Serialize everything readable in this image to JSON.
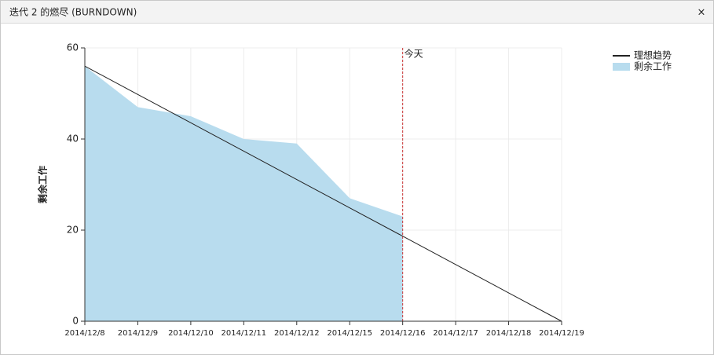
{
  "window": {
    "title": "迭代 2 的燃尽 (BURNDOWN)",
    "close": "×"
  },
  "chart_data": {
    "type": "burndown",
    "y_label": "剩余工作",
    "categories": [
      "2014/12/8",
      "2014/12/9",
      "2014/12/10",
      "2014/12/11",
      "2014/12/12",
      "2014/12/15",
      "2014/12/16",
      "2014/12/17",
      "2014/12/18",
      "2014/12/19"
    ],
    "series": [
      {
        "name": "理想趋势",
        "style": "line",
        "color": "#222222",
        "values": [
          56,
          49.78,
          43.56,
          37.33,
          31.11,
          24.89,
          18.67,
          12.44,
          6.22,
          0
        ]
      },
      {
        "name": "剩余工作",
        "style": "area",
        "color": "#b8dcee",
        "values": [
          56,
          47,
          45,
          40,
          39,
          27,
          23,
          null,
          null,
          null
        ]
      }
    ],
    "today": {
      "label": "今天",
      "category": "2014/12/16",
      "color": "#cc3333"
    },
    "ylim": [
      0,
      60
    ],
    "yticks": [
      0,
      20,
      40,
      60
    ],
    "grid": true,
    "legend": "top-right"
  }
}
